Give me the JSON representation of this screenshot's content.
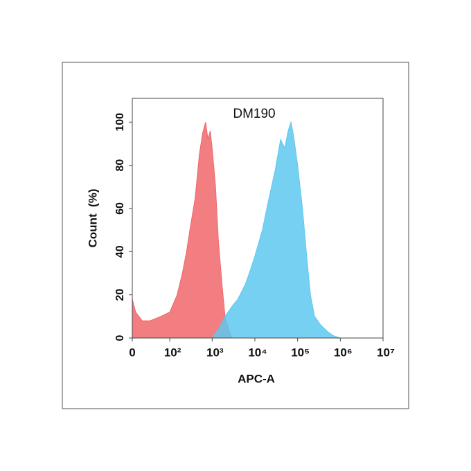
{
  "chart_data": {
    "type": "area",
    "title": "DM190",
    "xlabel": "APC-A",
    "ylabel": "Count  (%)",
    "xscale": "biexponential",
    "xlim": [
      0,
      10000000
    ],
    "xticks": [
      0,
      {
        "value": 100,
        "label": "10²"
      },
      {
        "value": 1000,
        "label": "10³"
      },
      {
        "value": 10000,
        "label": "10⁴"
      },
      {
        "value": 100000,
        "label": "10⁵"
      },
      {
        "value": 1000000,
        "label": "10⁶"
      },
      {
        "value": 10000000,
        "label": "10⁷"
      }
    ],
    "ylim": [
      0,
      111
    ],
    "yticks": [
      0,
      20,
      40,
      60,
      80,
      100
    ],
    "series": [
      {
        "color": "#f0676b",
        "x": [
          0,
          5,
          15,
          30,
          60,
          100,
          150,
          200,
          250,
          300,
          400,
          500,
          600,
          700,
          800,
          900,
          1000,
          1200,
          1400,
          1700,
          2000,
          2500,
          3000
        ],
        "values": [
          18,
          12,
          8,
          8,
          10,
          12,
          20,
          30,
          40,
          50,
          65,
          85,
          95,
          100,
          92,
          96,
          88,
          70,
          45,
          25,
          10,
          3,
          0
        ]
      },
      {
        "color": "#5ec8f0",
        "x": [
          1000,
          1500,
          2000,
          3000,
          4000,
          6000,
          8000,
          10000,
          15000,
          20000,
          30000,
          40000,
          50000,
          60000,
          70000,
          80000,
          100000,
          130000,
          160000,
          200000,
          250000,
          350000,
          500000,
          700000,
          1000000
        ],
        "values": [
          0,
          5,
          10,
          15,
          18,
          25,
          32,
          38,
          50,
          62,
          78,
          92,
          88,
          96,
          100,
          94,
          80,
          60,
          40,
          20,
          10,
          6,
          3,
          1,
          0
        ]
      }
    ]
  }
}
